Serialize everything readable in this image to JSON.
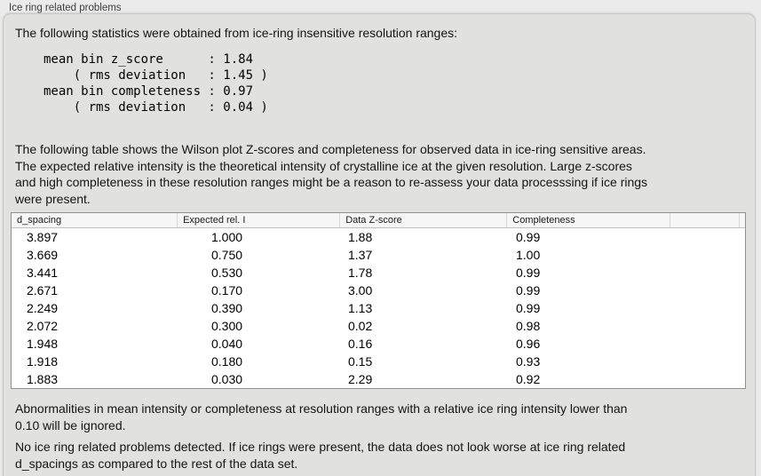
{
  "panel": {
    "title": "Ice ring related problems"
  },
  "intro_text": "The following statistics were obtained from ice-ring insensitive resolution ranges:",
  "stats_block": "mean bin z_score      : 1.84\n    ( rms deviation   : 1.45 )\nmean bin completeness : 0.97\n    ( rms deviation   : 0.04 )",
  "table_description": "The following table shows the Wilson plot Z-scores and completeness for observed data in ice-ring sensitive areas.\nThe expected relative intensity is the theoretical intensity of crystalline ice at the given resolution. Large z-scores\nand high completeness in these resolution ranges might be a reason to re-assess your data processsing if ice rings\nwere present.",
  "ice_ring_table": {
    "columns": [
      "d_spacing",
      "Expected rel. I",
      "Data Z-score",
      "Completeness"
    ],
    "rows": [
      [
        "3.897",
        "1.000",
        "1.88",
        "0.99"
      ],
      [
        "3.669",
        "0.750",
        "1.37",
        "1.00"
      ],
      [
        "3.441",
        "0.530",
        "1.78",
        "0.99"
      ],
      [
        "2.671",
        "0.170",
        "3.00",
        "0.99"
      ],
      [
        "2.249",
        "0.390",
        "1.13",
        "0.99"
      ],
      [
        "2.072",
        "0.300",
        "0.02",
        "0.98"
      ],
      [
        "1.948",
        "0.040",
        "0.16",
        "0.96"
      ],
      [
        "1.918",
        "0.180",
        "0.15",
        "0.93"
      ],
      [
        "1.883",
        "0.030",
        "2.29",
        "0.92"
      ]
    ]
  },
  "ignore_note": "Abnormalities in mean intensity or completeness at resolution ranges with a relative ice ring intensity lower than\n0.10 will be ignored.",
  "conclusion": "No ice ring related problems detected. If ice rings were present, the data does not look worse at ice ring related\nd_spacings as compared to the rest of the data set.",
  "colors": {
    "page_background": "#ebebeb",
    "panel_background": "#e1e1df",
    "table_border": "#8f8f8f",
    "table_header_background": "#f6f6f6",
    "text": "#141414"
  }
}
